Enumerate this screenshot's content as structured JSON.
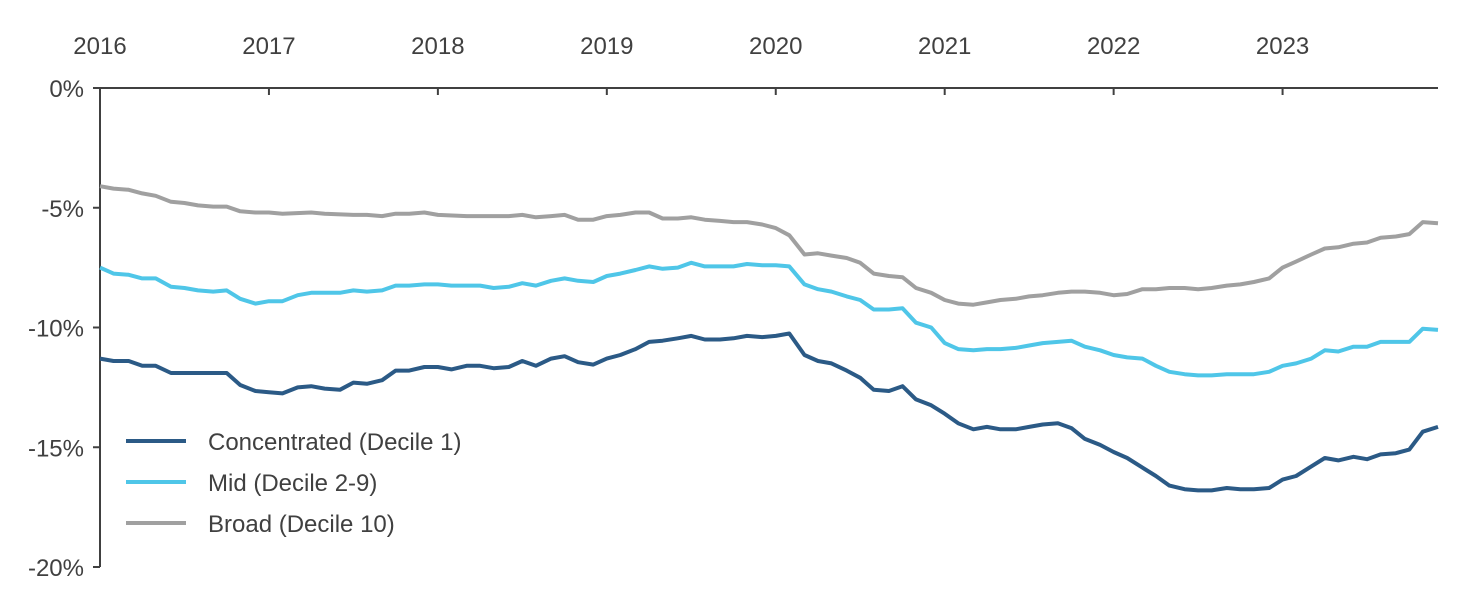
{
  "chart_data": {
    "type": "line",
    "title": "",
    "xlabel": "",
    "ylabel": "",
    "x_axis_position": "top",
    "xlim": [
      2016.0,
      2023.92
    ],
    "ylim": [
      -20,
      0
    ],
    "x_ticks": [
      2016,
      2017,
      2018,
      2019,
      2020,
      2021,
      2022,
      2023
    ],
    "x_tick_labels": [
      "2016",
      "2017",
      "2018",
      "2019",
      "2020",
      "2021",
      "2022",
      "2023"
    ],
    "y_ticks": [
      0,
      -5,
      -10,
      -15,
      -20
    ],
    "y_tick_labels": [
      "0%",
      "-5%",
      "-10%",
      "-15%",
      "-20%"
    ],
    "grid": false,
    "legend_position": "bottom-left",
    "colors": {
      "axis": "#404040",
      "text": "#404040"
    },
    "series": [
      {
        "name": "Concentrated (Decile 1)",
        "color": "#2b5a86",
        "points": [
          [
            2016.0,
            -11.3
          ],
          [
            2016.08,
            -11.4
          ],
          [
            2016.17,
            -11.4
          ],
          [
            2016.25,
            -11.6
          ],
          [
            2016.33,
            -11.6
          ],
          [
            2016.42,
            -11.9
          ],
          [
            2016.5,
            -11.9
          ],
          [
            2016.67,
            -11.9
          ],
          [
            2016.75,
            -11.9
          ],
          [
            2016.83,
            -12.4
          ],
          [
            2016.92,
            -12.65
          ],
          [
            2017.0,
            -12.7
          ],
          [
            2017.08,
            -12.75
          ],
          [
            2017.17,
            -12.5
          ],
          [
            2017.25,
            -12.45
          ],
          [
            2017.33,
            -12.55
          ],
          [
            2017.42,
            -12.6
          ],
          [
            2017.5,
            -12.3
          ],
          [
            2017.58,
            -12.35
          ],
          [
            2017.67,
            -12.2
          ],
          [
            2017.75,
            -11.8
          ],
          [
            2017.83,
            -11.8
          ],
          [
            2017.92,
            -11.65
          ],
          [
            2018.0,
            -11.65
          ],
          [
            2018.08,
            -11.75
          ],
          [
            2018.17,
            -11.6
          ],
          [
            2018.25,
            -11.6
          ],
          [
            2018.33,
            -11.7
          ],
          [
            2018.42,
            -11.65
          ],
          [
            2018.5,
            -11.4
          ],
          [
            2018.58,
            -11.6
          ],
          [
            2018.67,
            -11.3
          ],
          [
            2018.75,
            -11.2
          ],
          [
            2018.83,
            -11.45
          ],
          [
            2018.92,
            -11.55
          ],
          [
            2019.0,
            -11.3
          ],
          [
            2019.08,
            -11.15
          ],
          [
            2019.17,
            -10.9
          ],
          [
            2019.25,
            -10.6
          ],
          [
            2019.33,
            -10.55
          ],
          [
            2019.42,
            -10.45
          ],
          [
            2019.5,
            -10.35
          ],
          [
            2019.58,
            -10.5
          ],
          [
            2019.67,
            -10.5
          ],
          [
            2019.75,
            -10.45
          ],
          [
            2019.83,
            -10.35
          ],
          [
            2019.92,
            -10.4
          ],
          [
            2020.0,
            -10.35
          ],
          [
            2020.08,
            -10.25
          ],
          [
            2020.17,
            -11.15
          ],
          [
            2020.25,
            -11.4
          ],
          [
            2020.33,
            -11.5
          ],
          [
            2020.42,
            -11.8
          ],
          [
            2020.5,
            -12.1
          ],
          [
            2020.58,
            -12.6
          ],
          [
            2020.67,
            -12.65
          ],
          [
            2020.75,
            -12.45
          ],
          [
            2020.83,
            -13.0
          ],
          [
            2020.92,
            -13.25
          ],
          [
            2021.0,
            -13.6
          ],
          [
            2021.08,
            -14.0
          ],
          [
            2021.17,
            -14.25
          ],
          [
            2021.25,
            -14.15
          ],
          [
            2021.33,
            -14.25
          ],
          [
            2021.42,
            -14.25
          ],
          [
            2021.5,
            -14.15
          ],
          [
            2021.58,
            -14.05
          ],
          [
            2021.67,
            -14.0
          ],
          [
            2021.75,
            -14.2
          ],
          [
            2021.83,
            -14.65
          ],
          [
            2021.92,
            -14.9
          ],
          [
            2022.0,
            -15.2
          ],
          [
            2022.08,
            -15.45
          ],
          [
            2022.17,
            -15.85
          ],
          [
            2022.25,
            -16.2
          ],
          [
            2022.33,
            -16.6
          ],
          [
            2022.42,
            -16.75
          ],
          [
            2022.5,
            -16.8
          ],
          [
            2022.58,
            -16.8
          ],
          [
            2022.67,
            -16.7
          ],
          [
            2022.75,
            -16.75
          ],
          [
            2022.83,
            -16.75
          ],
          [
            2022.92,
            -16.7
          ],
          [
            2023.0,
            -16.35
          ],
          [
            2023.08,
            -16.2
          ],
          [
            2023.17,
            -15.8
          ],
          [
            2023.25,
            -15.45
          ],
          [
            2023.33,
            -15.55
          ],
          [
            2023.42,
            -15.4
          ],
          [
            2023.5,
            -15.5
          ],
          [
            2023.58,
            -15.3
          ],
          [
            2023.67,
            -15.25
          ],
          [
            2023.75,
            -15.1
          ],
          [
            2023.83,
            -14.35
          ],
          [
            2023.92,
            -14.15
          ]
        ]
      },
      {
        "name": "Mid (Decile 2-9)",
        "color": "#4fc6e8",
        "points": [
          [
            2016.0,
            -7.5
          ],
          [
            2016.08,
            -7.75
          ],
          [
            2016.17,
            -7.8
          ],
          [
            2016.25,
            -7.95
          ],
          [
            2016.33,
            -7.95
          ],
          [
            2016.42,
            -8.3
          ],
          [
            2016.5,
            -8.35
          ],
          [
            2016.58,
            -8.45
          ],
          [
            2016.67,
            -8.5
          ],
          [
            2016.75,
            -8.45
          ],
          [
            2016.83,
            -8.8
          ],
          [
            2016.92,
            -9.0
          ],
          [
            2017.0,
            -8.9
          ],
          [
            2017.08,
            -8.9
          ],
          [
            2017.17,
            -8.65
          ],
          [
            2017.25,
            -8.55
          ],
          [
            2017.42,
            -8.55
          ],
          [
            2017.5,
            -8.45
          ],
          [
            2017.58,
            -8.5
          ],
          [
            2017.67,
            -8.45
          ],
          [
            2017.75,
            -8.25
          ],
          [
            2017.83,
            -8.25
          ],
          [
            2017.92,
            -8.2
          ],
          [
            2018.0,
            -8.2
          ],
          [
            2018.08,
            -8.25
          ],
          [
            2018.17,
            -8.25
          ],
          [
            2018.25,
            -8.25
          ],
          [
            2018.33,
            -8.35
          ],
          [
            2018.42,
            -8.3
          ],
          [
            2018.5,
            -8.15
          ],
          [
            2018.58,
            -8.25
          ],
          [
            2018.67,
            -8.05
          ],
          [
            2018.75,
            -7.95
          ],
          [
            2018.83,
            -8.05
          ],
          [
            2018.92,
            -8.1
          ],
          [
            2019.0,
            -7.85
          ],
          [
            2019.08,
            -7.75
          ],
          [
            2019.17,
            -7.6
          ],
          [
            2019.25,
            -7.45
          ],
          [
            2019.33,
            -7.55
          ],
          [
            2019.42,
            -7.5
          ],
          [
            2019.5,
            -7.3
          ],
          [
            2019.58,
            -7.45
          ],
          [
            2019.67,
            -7.45
          ],
          [
            2019.75,
            -7.45
          ],
          [
            2019.83,
            -7.35
          ],
          [
            2019.92,
            -7.4
          ],
          [
            2020.0,
            -7.4
          ],
          [
            2020.08,
            -7.45
          ],
          [
            2020.17,
            -8.2
          ],
          [
            2020.25,
            -8.4
          ],
          [
            2020.33,
            -8.5
          ],
          [
            2020.42,
            -8.7
          ],
          [
            2020.5,
            -8.85
          ],
          [
            2020.58,
            -9.25
          ],
          [
            2020.67,
            -9.25
          ],
          [
            2020.75,
            -9.2
          ],
          [
            2020.83,
            -9.8
          ],
          [
            2020.92,
            -10.0
          ],
          [
            2021.0,
            -10.65
          ],
          [
            2021.08,
            -10.9
          ],
          [
            2021.17,
            -10.95
          ],
          [
            2021.25,
            -10.9
          ],
          [
            2021.33,
            -10.9
          ],
          [
            2021.42,
            -10.85
          ],
          [
            2021.5,
            -10.75
          ],
          [
            2021.58,
            -10.65
          ],
          [
            2021.67,
            -10.6
          ],
          [
            2021.75,
            -10.55
          ],
          [
            2021.83,
            -10.8
          ],
          [
            2021.92,
            -10.95
          ],
          [
            2022.0,
            -11.15
          ],
          [
            2022.08,
            -11.25
          ],
          [
            2022.17,
            -11.3
          ],
          [
            2022.25,
            -11.6
          ],
          [
            2022.33,
            -11.85
          ],
          [
            2022.42,
            -11.95
          ],
          [
            2022.5,
            -12.0
          ],
          [
            2022.58,
            -12.0
          ],
          [
            2022.67,
            -11.95
          ],
          [
            2022.75,
            -11.95
          ],
          [
            2022.83,
            -11.95
          ],
          [
            2022.92,
            -11.85
          ],
          [
            2023.0,
            -11.6
          ],
          [
            2023.08,
            -11.5
          ],
          [
            2023.17,
            -11.3
          ],
          [
            2023.25,
            -10.95
          ],
          [
            2023.33,
            -11.0
          ],
          [
            2023.42,
            -10.8
          ],
          [
            2023.5,
            -10.8
          ],
          [
            2023.58,
            -10.6
          ],
          [
            2023.67,
            -10.6
          ],
          [
            2023.75,
            -10.6
          ],
          [
            2023.83,
            -10.05
          ],
          [
            2023.92,
            -10.1
          ]
        ]
      },
      {
        "name": "Broad (Decile 10)",
        "color": "#a0a0a0",
        "points": [
          [
            2016.0,
            -4.1
          ],
          [
            2016.08,
            -4.2
          ],
          [
            2016.17,
            -4.25
          ],
          [
            2016.25,
            -4.4
          ],
          [
            2016.33,
            -4.5
          ],
          [
            2016.42,
            -4.75
          ],
          [
            2016.5,
            -4.8
          ],
          [
            2016.58,
            -4.9
          ],
          [
            2016.67,
            -4.95
          ],
          [
            2016.75,
            -4.95
          ],
          [
            2016.83,
            -5.15
          ],
          [
            2016.92,
            -5.2
          ],
          [
            2017.0,
            -5.2
          ],
          [
            2017.08,
            -5.25
          ],
          [
            2017.25,
            -5.2
          ],
          [
            2017.33,
            -5.25
          ],
          [
            2017.5,
            -5.3
          ],
          [
            2017.58,
            -5.3
          ],
          [
            2017.67,
            -5.35
          ],
          [
            2017.75,
            -5.25
          ],
          [
            2017.83,
            -5.25
          ],
          [
            2017.92,
            -5.2
          ],
          [
            2018.0,
            -5.3
          ],
          [
            2018.17,
            -5.35
          ],
          [
            2018.33,
            -5.35
          ],
          [
            2018.42,
            -5.35
          ],
          [
            2018.5,
            -5.3
          ],
          [
            2018.58,
            -5.4
          ],
          [
            2018.67,
            -5.35
          ],
          [
            2018.75,
            -5.3
          ],
          [
            2018.83,
            -5.5
          ],
          [
            2018.92,
            -5.5
          ],
          [
            2019.0,
            -5.35
          ],
          [
            2019.08,
            -5.3
          ],
          [
            2019.17,
            -5.2
          ],
          [
            2019.25,
            -5.2
          ],
          [
            2019.33,
            -5.45
          ],
          [
            2019.42,
            -5.45
          ],
          [
            2019.5,
            -5.4
          ],
          [
            2019.58,
            -5.5
          ],
          [
            2019.67,
            -5.55
          ],
          [
            2019.75,
            -5.6
          ],
          [
            2019.83,
            -5.6
          ],
          [
            2019.92,
            -5.7
          ],
          [
            2020.0,
            -5.85
          ],
          [
            2020.08,
            -6.15
          ],
          [
            2020.17,
            -6.95
          ],
          [
            2020.25,
            -6.9
          ],
          [
            2020.33,
            -7.0
          ],
          [
            2020.42,
            -7.1
          ],
          [
            2020.5,
            -7.3
          ],
          [
            2020.58,
            -7.75
          ],
          [
            2020.67,
            -7.85
          ],
          [
            2020.75,
            -7.9
          ],
          [
            2020.83,
            -8.35
          ],
          [
            2020.92,
            -8.55
          ],
          [
            2021.0,
            -8.85
          ],
          [
            2021.08,
            -9.0
          ],
          [
            2021.17,
            -9.05
          ],
          [
            2021.25,
            -8.95
          ],
          [
            2021.33,
            -8.85
          ],
          [
            2021.42,
            -8.8
          ],
          [
            2021.5,
            -8.7
          ],
          [
            2021.58,
            -8.65
          ],
          [
            2021.67,
            -8.55
          ],
          [
            2021.75,
            -8.5
          ],
          [
            2021.83,
            -8.5
          ],
          [
            2021.92,
            -8.55
          ],
          [
            2022.0,
            -8.65
          ],
          [
            2022.08,
            -8.6
          ],
          [
            2022.17,
            -8.4
          ],
          [
            2022.25,
            -8.4
          ],
          [
            2022.33,
            -8.35
          ],
          [
            2022.42,
            -8.35
          ],
          [
            2022.5,
            -8.4
          ],
          [
            2022.58,
            -8.35
          ],
          [
            2022.67,
            -8.25
          ],
          [
            2022.75,
            -8.2
          ],
          [
            2022.83,
            -8.1
          ],
          [
            2022.92,
            -7.95
          ],
          [
            2023.0,
            -7.5
          ],
          [
            2023.08,
            -7.25
          ],
          [
            2023.17,
            -6.95
          ],
          [
            2023.25,
            -6.7
          ],
          [
            2023.33,
            -6.65
          ],
          [
            2023.42,
            -6.5
          ],
          [
            2023.5,
            -6.45
          ],
          [
            2023.58,
            -6.25
          ],
          [
            2023.67,
            -6.2
          ],
          [
            2023.75,
            -6.1
          ],
          [
            2023.83,
            -5.6
          ],
          [
            2023.92,
            -5.65
          ]
        ]
      }
    ]
  }
}
